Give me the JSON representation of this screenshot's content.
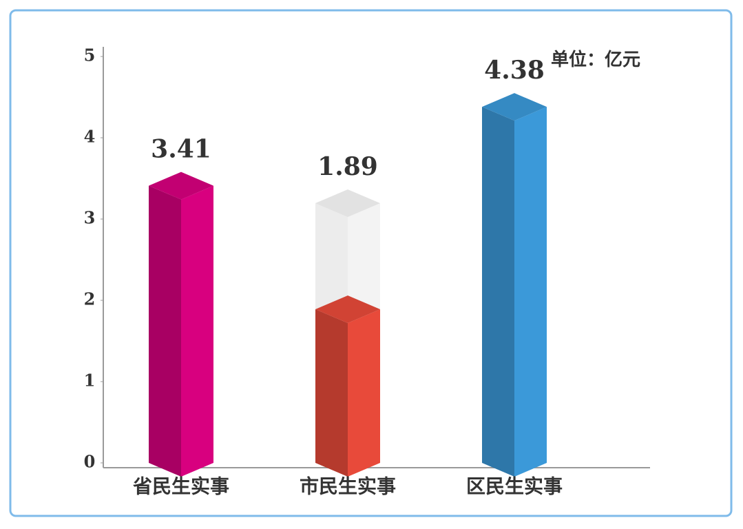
{
  "chart_data": {
    "type": "bar3d",
    "unit_label": "单位：亿元",
    "categories": [
      "省民生实事",
      "市民生实事",
      "区民生实事"
    ],
    "values": [
      3.41,
      1.89,
      4.38
    ],
    "colors": [
      "#d8007f",
      "#e84a3a",
      "#3b99d9"
    ],
    "ylim": [
      0,
      5
    ],
    "yticks": [
      0,
      1,
      2,
      3,
      4,
      5
    ],
    "grid": false
  }
}
